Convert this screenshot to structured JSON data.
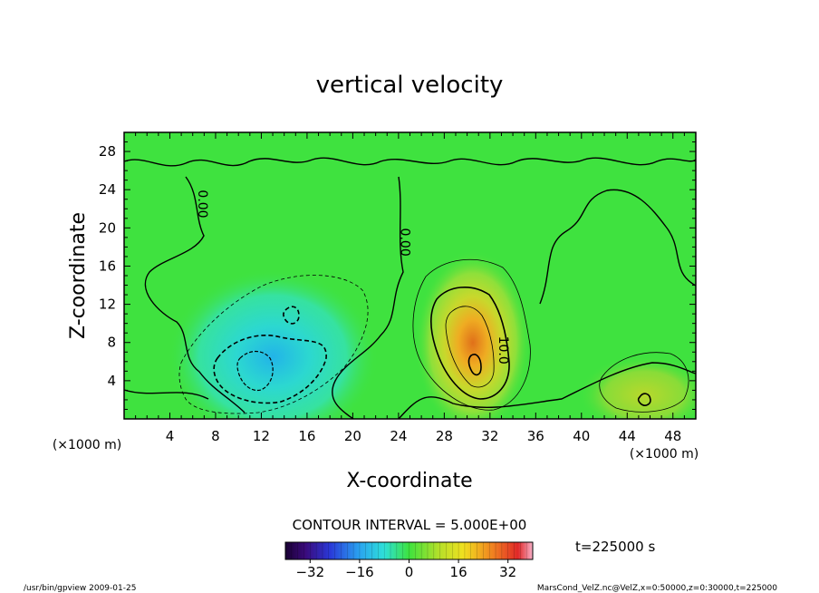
{
  "chart_data": {
    "type": "heatmap",
    "title": "vertical velocity",
    "xlabel": "X-coordinate",
    "ylabel": "Z-coordinate",
    "x_unit_left": "(×1000 m)",
    "x_unit_right": "(×1000 m)",
    "xlim": [
      0,
      50
    ],
    "ylim": [
      0,
      30
    ],
    "xticks": [
      4,
      8,
      12,
      16,
      20,
      24,
      28,
      32,
      36,
      40,
      44,
      48
    ],
    "yticks": [
      4,
      8,
      12,
      16,
      20,
      24,
      28
    ],
    "contour_interval_text": "CONTOUR INTERVAL = 5.000E+00",
    "contour_labels": [
      {
        "text": "0.00",
        "x": 6.5,
        "y": 22.5,
        "angle": -90
      },
      {
        "text": "0.00",
        "x": 24.2,
        "y": 18.5,
        "angle": -90
      },
      {
        "text": "10.0",
        "x": 32.8,
        "y": 7.2,
        "angle": -90
      }
    ],
    "time_text": "t=225000 s",
    "colorbar": {
      "range": [
        -40,
        40
      ],
      "tick_values": [
        -32,
        -16,
        0,
        16,
        32
      ],
      "tick_labels": [
        "−32",
        "−16",
        "0",
        "16",
        "32"
      ]
    },
    "footer_left": "/usr/bin/gpview  2009-01-25",
    "footer_right": "MarsCond_VelZ.nc@VelZ,x=0:50000,z=0:30000,t=225000",
    "field_features": [
      {
        "sign": "positive",
        "cx": 30.5,
        "cz": 8.0,
        "sx": 2.2,
        "sz": 4.2,
        "peak": 26
      },
      {
        "sign": "negative",
        "cx": 13.0,
        "cz": 6.5,
        "sx": 4.0,
        "sz": 4.0,
        "peak": -17
      },
      {
        "sign": "positive",
        "cx": 45.5,
        "cz": 2.5,
        "sx": 2.5,
        "sz": 1.8,
        "peak": 8
      }
    ],
    "background_color": "#3fe23f"
  }
}
